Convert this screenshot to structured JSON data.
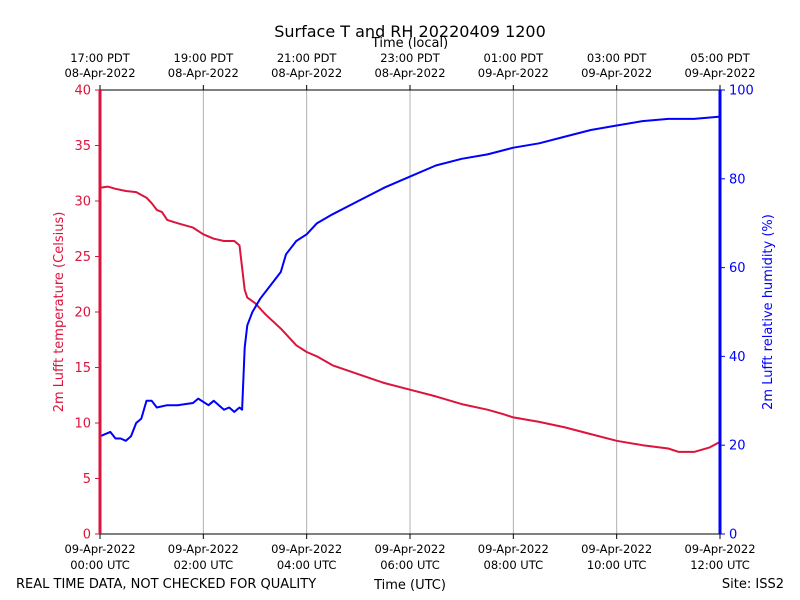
{
  "chart_data": {
    "type": "line",
    "title": "Surface T and RH 20220409 1200",
    "top_axis_label": "Time (local)",
    "xlabel": "Time (UTC)",
    "ylabel_left": "2m Lufft temperature (Celsius)",
    "ylabel_right": "2m Lufft relative humidity (%)",
    "footer_left": "REAL TIME DATA, NOT CHECKED FOR QUALITY",
    "footer_right": "Site: ISS2",
    "x_range_hours": [
      0,
      12
    ],
    "ylim_left": [
      0,
      40
    ],
    "ylim_right": [
      0,
      100
    ],
    "yticks_left": [
      0,
      5,
      10,
      15,
      20,
      25,
      30,
      35,
      40
    ],
    "yticks_right": [
      0,
      20,
      40,
      60,
      80,
      100
    ],
    "grid": "vertical",
    "colors": {
      "temperature": "#dc143c",
      "humidity": "#0000ff",
      "grid": "#b0b0b0",
      "axis": "#000000"
    },
    "x_ticks": [
      {
        "hour": 0,
        "utc_date": "09-Apr-2022",
        "utc_time": "00:00 UTC",
        "local_time": "17:00 PDT",
        "local_date": "08-Apr-2022"
      },
      {
        "hour": 2,
        "utc_date": "09-Apr-2022",
        "utc_time": "02:00 UTC",
        "local_time": "19:00 PDT",
        "local_date": "08-Apr-2022"
      },
      {
        "hour": 4,
        "utc_date": "09-Apr-2022",
        "utc_time": "04:00 UTC",
        "local_time": "21:00 PDT",
        "local_date": "08-Apr-2022"
      },
      {
        "hour": 6,
        "utc_date": "09-Apr-2022",
        "utc_time": "06:00 UTC",
        "local_time": "23:00 PDT",
        "local_date": "08-Apr-2022"
      },
      {
        "hour": 8,
        "utc_date": "09-Apr-2022",
        "utc_time": "08:00 UTC",
        "local_time": "01:00 PDT",
        "local_date": "09-Apr-2022"
      },
      {
        "hour": 10,
        "utc_date": "09-Apr-2022",
        "utc_time": "10:00 UTC",
        "local_time": "03:00 PDT",
        "local_date": "09-Apr-2022"
      },
      {
        "hour": 12,
        "utc_date": "09-Apr-2022",
        "utc_time": "12:00 UTC",
        "local_time": "05:00 PDT",
        "local_date": "09-Apr-2022"
      }
    ],
    "series": [
      {
        "name": "2m Lufft temperature",
        "axis": "left",
        "unit": "Celsius",
        "x": [
          0,
          0.15,
          0.3,
          0.5,
          0.7,
          0.9,
          1.0,
          1.1,
          1.2,
          1.3,
          1.5,
          1.8,
          2.0,
          2.2,
          2.4,
          2.6,
          2.7,
          2.75,
          2.8,
          2.85,
          3.0,
          3.2,
          3.5,
          3.8,
          4.0,
          4.2,
          4.5,
          5.0,
          5.5,
          6.0,
          6.5,
          7.0,
          7.5,
          7.8,
          8.0,
          8.5,
          9.0,
          9.5,
          10.0,
          10.5,
          11.0,
          11.2,
          11.5,
          11.8,
          12.0
        ],
        "values": [
          31.2,
          31.3,
          31.1,
          30.9,
          30.8,
          30.3,
          29.8,
          29.2,
          29.0,
          28.3,
          28.0,
          27.6,
          27.0,
          26.6,
          26.4,
          26.4,
          26.0,
          24.0,
          22.0,
          21.3,
          20.8,
          19.8,
          18.5,
          17.0,
          16.4,
          16.0,
          15.2,
          14.4,
          13.6,
          13.0,
          12.4,
          11.7,
          11.2,
          10.8,
          10.5,
          10.1,
          9.6,
          9.0,
          8.4,
          8.0,
          7.7,
          7.4,
          7.4,
          7.8,
          8.3
        ]
      },
      {
        "name": "2m Lufft relative humidity",
        "axis": "right",
        "unit": "%",
        "x": [
          0,
          0.2,
          0.3,
          0.4,
          0.5,
          0.6,
          0.7,
          0.8,
          0.9,
          1.0,
          1.1,
          1.3,
          1.5,
          1.8,
          1.9,
          2.1,
          2.2,
          2.4,
          2.5,
          2.6,
          2.7,
          2.75,
          2.8,
          2.85,
          2.95,
          3.1,
          3.3,
          3.5,
          3.6,
          3.8,
          4.0,
          4.2,
          4.5,
          5.0,
          5.5,
          6.0,
          6.5,
          7.0,
          7.5,
          8.0,
          8.5,
          9.0,
          9.5,
          10.0,
          10.5,
          11.0,
          11.5,
          12.0
        ],
        "values": [
          22,
          23,
          21.5,
          21.5,
          21,
          22,
          25,
          26,
          30,
          30,
          28.5,
          29,
          29,
          29.5,
          30.5,
          29,
          30,
          28,
          28.5,
          27.5,
          28.5,
          28,
          42,
          47,
          50,
          53,
          56,
          59,
          63,
          66,
          67.5,
          70,
          72,
          75,
          78,
          80.5,
          83,
          84.5,
          85.5,
          87,
          88,
          89.5,
          91,
          92,
          93,
          93.5,
          93.5,
          94
        ]
      }
    ]
  }
}
